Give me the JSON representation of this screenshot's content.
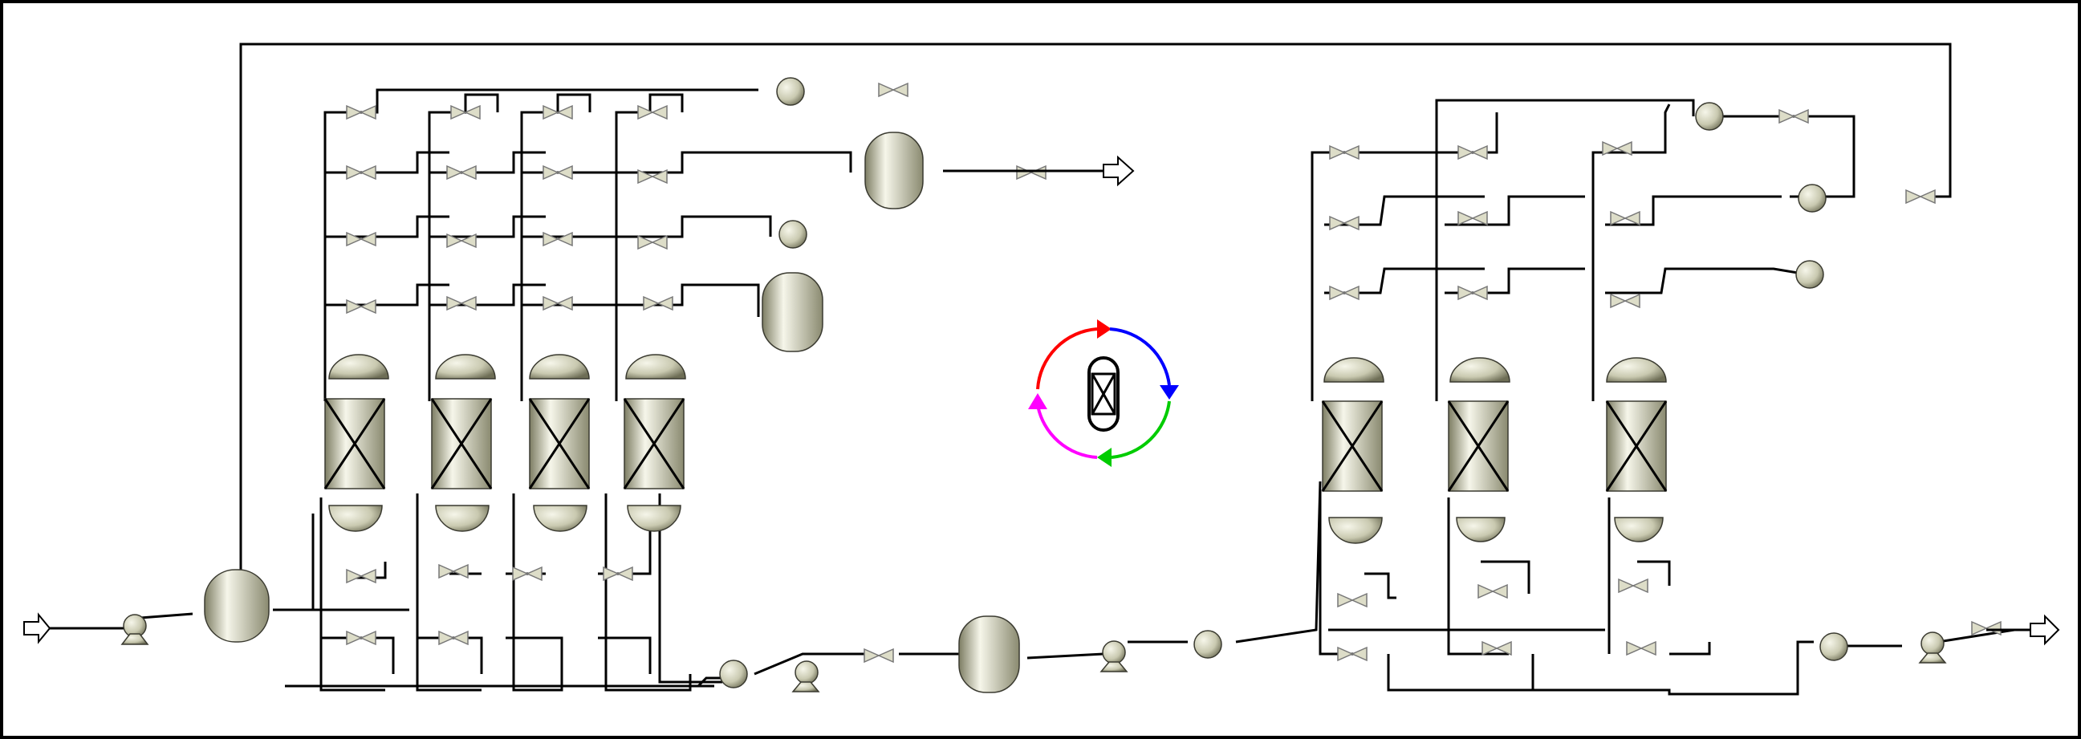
{
  "diagram": {
    "type": "process-flow-diagram",
    "equipment_colors": {
      "vessel_light": "#f6f6ea",
      "vessel_mid": "#cfcfb6",
      "vessel_dark": "#7d7d63",
      "line": "#000000",
      "background": "#ffffff"
    },
    "cycle_icon": {
      "arrow_colors": [
        "#ff0000",
        "#0000ff",
        "#00cc00",
        "#ff00ff"
      ]
    },
    "sections": [
      {
        "name": "left-bed-train",
        "beds": 4
      },
      {
        "name": "right-bed-train",
        "beds": 3
      }
    ],
    "feed_arrow": "arrow-right-icon",
    "product_arrows": [
      "arrow-right-icon",
      "arrow-right-icon"
    ]
  }
}
